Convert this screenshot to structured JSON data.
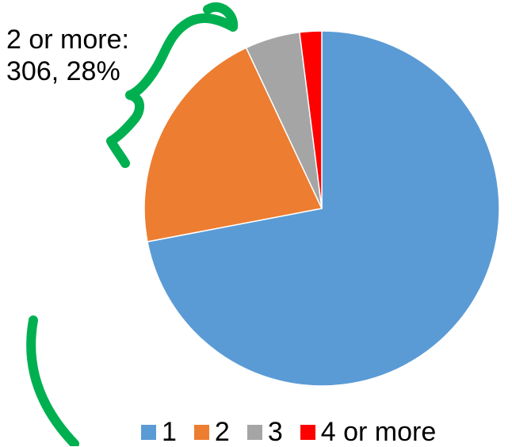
{
  "chart_data": {
    "type": "pie",
    "categories": [
      "1",
      "2",
      "3",
      "4 or more"
    ],
    "values": [
      72,
      21,
      5,
      2
    ],
    "start_angle_deg": 0,
    "direction": "clockwise",
    "colors": [
      "#5b9bd5",
      "#ed7d31",
      "#a5a5a5",
      "#ff0000"
    ],
    "legend": {
      "position": "bottom",
      "labels": [
        "1",
        "2",
        "3",
        "4 or more"
      ]
    },
    "annotation": {
      "line1": "2 or more:",
      "line2": "306, 28%",
      "bracket_color": "#00b050"
    }
  }
}
